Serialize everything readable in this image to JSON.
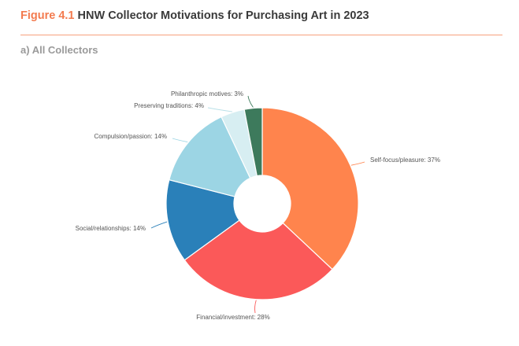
{
  "figure": {
    "label": "Figure 4.1",
    "title": "HNW Collector Motivations for Purchasing Art in 2023",
    "subtitle": "a) All Collectors"
  },
  "chart_data": {
    "type": "pie",
    "style": "donut",
    "legend": "none",
    "categories": [
      "Self-focus/pleasure",
      "Financial/investment",
      "Social/relationships",
      "Compulsion/passion",
      "Preserving traditions",
      "Philanthropic motives"
    ],
    "values": [
      37,
      28,
      14,
      14,
      4,
      3
    ],
    "labels": [
      "Self-focus/pleasure: 37%",
      "Financial/investment: 28%",
      "Social/relationships: 14%",
      "Compulsion/passion: 14%",
      "Preserving traditions: 4%",
      "Philanthropic motives: 3%"
    ],
    "colors": [
      "#ff844d",
      "#fb5959",
      "#2a80b9",
      "#9cd5e4",
      "#d7eef2",
      "#3d7a5c"
    ],
    "leader_color": "#555555"
  }
}
